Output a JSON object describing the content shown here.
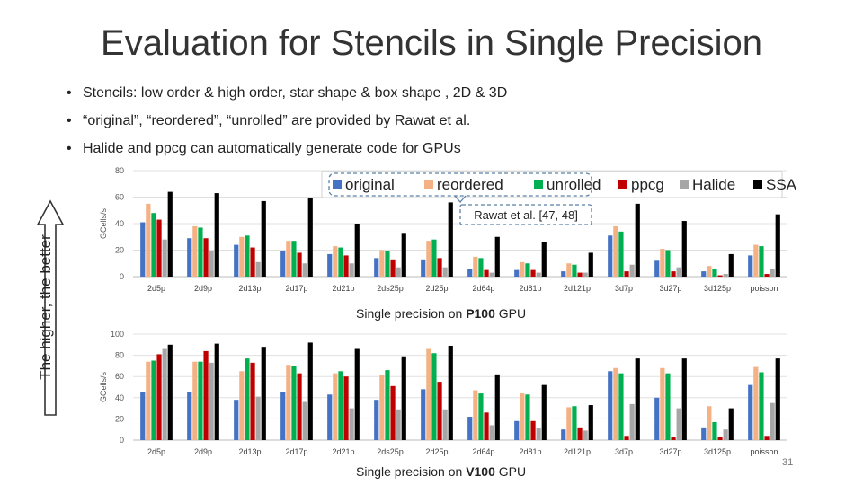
{
  "slide": {
    "title": "Evaluation for Stencils in Single Precision",
    "bullets": [
      "Stencils: low order & high order, star shape & box shape , 2D & 3D",
      "“original”, “reordered”, “unrolled” are provided by Rawat et al.",
      "Halide and ppcg can automatically generate code for GPUs"
    ],
    "bullet_symbol": "•",
    "side_label": "The higher, the better",
    "page_number": "31",
    "captions": [
      {
        "pre": "Single precision on ",
        "bold": "P100",
        "post": " GPU"
      },
      {
        "pre": "Single precision on ",
        "bold": "V100",
        "post": " GPU"
      }
    ],
    "legend_note": "Rawat et al. [47, 48]"
  },
  "chart_data": [
    {
      "type": "bar",
      "title": "",
      "xlabel": "",
      "ylabel": "GCells/s",
      "ylim": [
        0,
        80
      ],
      "yticks": [
        0,
        20,
        40,
        60,
        80
      ],
      "grid": true,
      "legend_position": "top-right",
      "categories": [
        "2d5p",
        "2d9p",
        "2d13p",
        "2d17p",
        "2d21p",
        "2ds25p",
        "2d25p",
        "2d64p",
        "2d81p",
        "2d121p",
        "3d7p",
        "3d27p",
        "3d125p",
        "poisson"
      ],
      "series": [
        {
          "name": "original",
          "color": "#4472C4",
          "values": [
            41,
            29,
            24,
            19,
            17,
            14,
            13,
            6,
            5,
            4,
            31,
            12,
            4,
            16
          ]
        },
        {
          "name": "reordered",
          "color": "#F4B183",
          "values": [
            55,
            38,
            30,
            27,
            23,
            20,
            27,
            15,
            11,
            10,
            38,
            21,
            8,
            24
          ]
        },
        {
          "name": "unrolled",
          "color": "#00B050",
          "values": [
            48,
            37,
            31,
            27,
            22,
            19,
            28,
            14,
            10,
            9,
            34,
            20,
            6,
            23
          ]
        },
        {
          "name": "ppcg",
          "color": "#C00000",
          "values": [
            43,
            29,
            22,
            18,
            16,
            13,
            14,
            5,
            5,
            3,
            4,
            4,
            1,
            2
          ]
        },
        {
          "name": "Halide",
          "color": "#A6A6A6",
          "values": [
            28,
            19,
            11,
            10,
            10,
            7,
            7,
            3,
            3,
            3,
            9,
            7,
            2,
            6
          ]
        },
        {
          "name": "SSAM",
          "color": "#000000",
          "values": [
            64,
            63,
            57,
            59,
            40,
            33,
            56,
            30,
            26,
            18,
            55,
            42,
            17,
            47
          ]
        }
      ]
    },
    {
      "type": "bar",
      "title": "",
      "xlabel": "",
      "ylabel": "GCells/s",
      "ylim": [
        0,
        100
      ],
      "yticks": [
        0,
        20,
        40,
        60,
        80,
        100
      ],
      "grid": true,
      "categories": [
        "2d5p",
        "2d9p",
        "2d13p",
        "2d17p",
        "2d21p",
        "2ds25p",
        "2d25p",
        "2d64p",
        "2d81p",
        "2d121p",
        "3d7p",
        "3d27p",
        "3d125p",
        "poisson"
      ],
      "series": [
        {
          "name": "original",
          "color": "#4472C4",
          "values": [
            45,
            45,
            38,
            45,
            43,
            38,
            48,
            22,
            18,
            10,
            65,
            40,
            12,
            52
          ]
        },
        {
          "name": "reordered",
          "color": "#F4B183",
          "values": [
            74,
            74,
            65,
            71,
            63,
            61,
            86,
            47,
            44,
            31,
            68,
            68,
            32,
            69
          ]
        },
        {
          "name": "unrolled",
          "color": "#00B050",
          "values": [
            75,
            74,
            77,
            70,
            65,
            66,
            82,
            44,
            43,
            32,
            63,
            63,
            17,
            64
          ]
        },
        {
          "name": "ppcg",
          "color": "#C00000",
          "values": [
            81,
            84,
            73,
            63,
            60,
            51,
            55,
            26,
            18,
            12,
            4,
            3,
            3,
            4
          ]
        },
        {
          "name": "Halide",
          "color": "#A6A6A6",
          "values": [
            86,
            73,
            41,
            36,
            30,
            29,
            29,
            14,
            11,
            9,
            34,
            30,
            10,
            35
          ]
        },
        {
          "name": "SSAM",
          "color": "#000000",
          "values": [
            90,
            91,
            88,
            92,
            86,
            79,
            89,
            62,
            52,
            33,
            77,
            77,
            30,
            77
          ]
        }
      ]
    }
  ]
}
